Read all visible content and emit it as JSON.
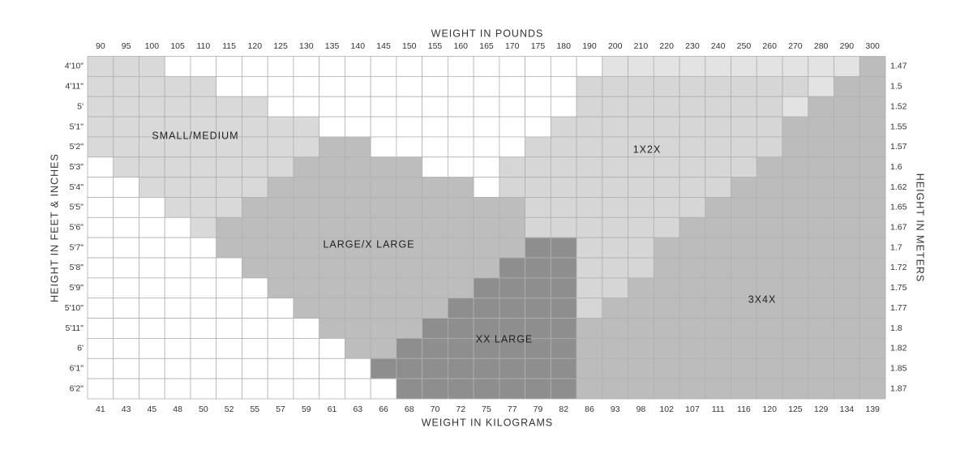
{
  "axes": {
    "top_title": "WEIGHT IN POUNDS",
    "bottom_title": "WEIGHT IN KILOGRAMS",
    "left_title": "HEIGHT IN FEET & INCHES",
    "right_title": "HEIGHT IN METERS",
    "pounds": [
      90,
      95,
      100,
      105,
      110,
      115,
      120,
      125,
      130,
      135,
      140,
      145,
      150,
      155,
      160,
      165,
      170,
      175,
      180,
      190,
      200,
      210,
      220,
      230,
      240,
      250,
      260,
      270,
      280,
      290,
      300
    ],
    "kilograms": [
      41,
      43,
      45,
      48,
      50,
      52,
      55,
      57,
      59,
      61,
      63,
      66,
      68,
      70,
      72,
      75,
      77,
      79,
      82,
      86,
      93,
      98,
      102,
      107,
      111,
      116,
      120,
      125,
      129,
      134,
      139
    ],
    "heights_ft": [
      "4'10\"",
      "4'11\"",
      "5'",
      "5'1\"",
      "5'2\"",
      "5'3\"",
      "5'4\"",
      "5'5\"",
      "5'6\"",
      "5'7\"",
      "5'8\"",
      "5'9\"",
      "5'10\"",
      "5'11\"",
      "6'",
      "6'1\"",
      "6'2\""
    ],
    "heights_m": [
      "1.47",
      "1.5",
      "1.52",
      "1.55",
      "1.57",
      "1.6",
      "1.62",
      "1.65",
      "1.67",
      "1.7",
      "1.72",
      "1.75",
      "1.77",
      "1.8",
      "1.82",
      "1.85",
      "1.87"
    ]
  },
  "zones": [
    "SMALL/MEDIUM",
    "LARGE/X LARGE",
    "XX LARGE",
    "1X2X",
    "3X4X"
  ]
}
